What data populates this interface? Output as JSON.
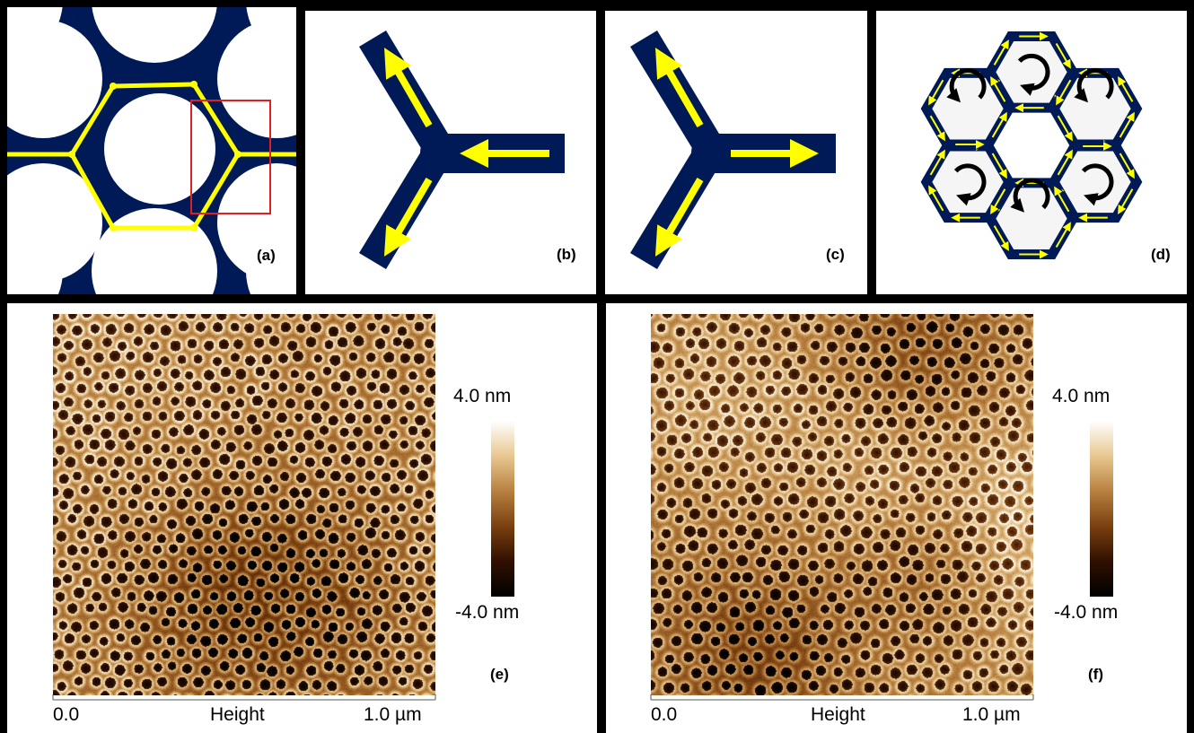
{
  "colors": {
    "navy": "#001a57",
    "yellow": "#ffff00",
    "frame": "#000000",
    "highlight_box": "#e02020",
    "afm_dark": "#1a0800",
    "afm_mid": "#a0520c",
    "afm_light": "#fff8e8"
  },
  "panels": {
    "a": {
      "label": "(a)"
    },
    "b": {
      "label": "(b)"
    },
    "c": {
      "label": "(c)"
    },
    "d": {
      "label": "(d)"
    },
    "e": {
      "label": "(e)",
      "colorbar_max": "4.0 nm",
      "colorbar_min": "-4.0 nm",
      "x_start": "0.0",
      "x_title": "Height",
      "x_end": "1.0 µm"
    },
    "f": {
      "label": "(f)",
      "colorbar_max": "4.0 nm",
      "colorbar_min": "-4.0 nm",
      "x_start": "0.0",
      "x_title": "Height",
      "x_end": "1.0 µm"
    }
  },
  "icons": [
    "arrow-icon",
    "clockwise-loop-icon",
    "counterclockwise-loop-icon"
  ]
}
